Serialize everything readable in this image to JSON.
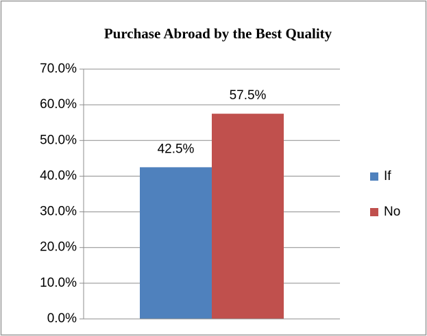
{
  "chart_data": {
    "type": "bar",
    "title": "Purchase Abroad by the Best Quality",
    "categories": [
      null
    ],
    "series": [
      {
        "name": "If",
        "color": "#4f81bd",
        "values": [
          42.5
        ],
        "value_labels": [
          "42.5%"
        ]
      },
      {
        "name": "No",
        "color": "#c0504d",
        "values": [
          57.5
        ],
        "value_labels": [
          "57.5%"
        ]
      }
    ],
    "ylim": [
      0,
      70
    ],
    "yticks": [
      {
        "value": 0,
        "label": "0.0%"
      },
      {
        "value": 10,
        "label": "10.0%"
      },
      {
        "value": 20,
        "label": "20.0%"
      },
      {
        "value": 30,
        "label": "30.0%"
      },
      {
        "value": 40,
        "label": "40.0%"
      },
      {
        "value": 50,
        "label": "50.0%"
      },
      {
        "value": 60,
        "label": "60.0%"
      },
      {
        "value": 70,
        "label": "70.0%"
      }
    ],
    "grid": true,
    "legend": "right"
  }
}
